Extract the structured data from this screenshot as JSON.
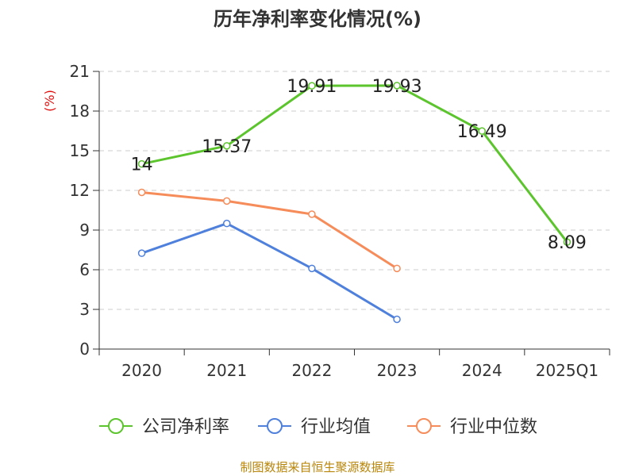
{
  "title": "历年净利率变化情况(%)",
  "source": "制图数据来自恒生聚源数据库",
  "chart_data": {
    "type": "line",
    "title": "历年净利率变化情况(%)",
    "ylabel": "(%)",
    "xlabel": "",
    "categories": [
      "2020",
      "2021",
      "2022",
      "2023",
      "2024",
      "2025Q1"
    ],
    "ylim": [
      0,
      21
    ],
    "yticks": [
      0,
      3,
      6,
      9,
      12,
      15,
      18,
      21
    ],
    "grid": true,
    "legend_position": "bottom",
    "series": [
      {
        "name": "公司净利率",
        "color": "#5cc42d",
        "values": [
          14,
          15.37,
          19.91,
          19.93,
          16.49,
          8.09
        ],
        "labels": [
          "14",
          "15.37",
          "19.91",
          "19.93",
          "16.49",
          "8.09"
        ]
      },
      {
        "name": "行业均值",
        "color": "#4f80dc",
        "values": [
          7.25,
          9.5,
          6.1,
          2.25,
          null,
          null
        ]
      },
      {
        "name": "行业中位数",
        "color": "#f68c5a",
        "values": [
          11.85,
          11.2,
          10.2,
          6.1,
          null,
          null
        ]
      }
    ]
  }
}
